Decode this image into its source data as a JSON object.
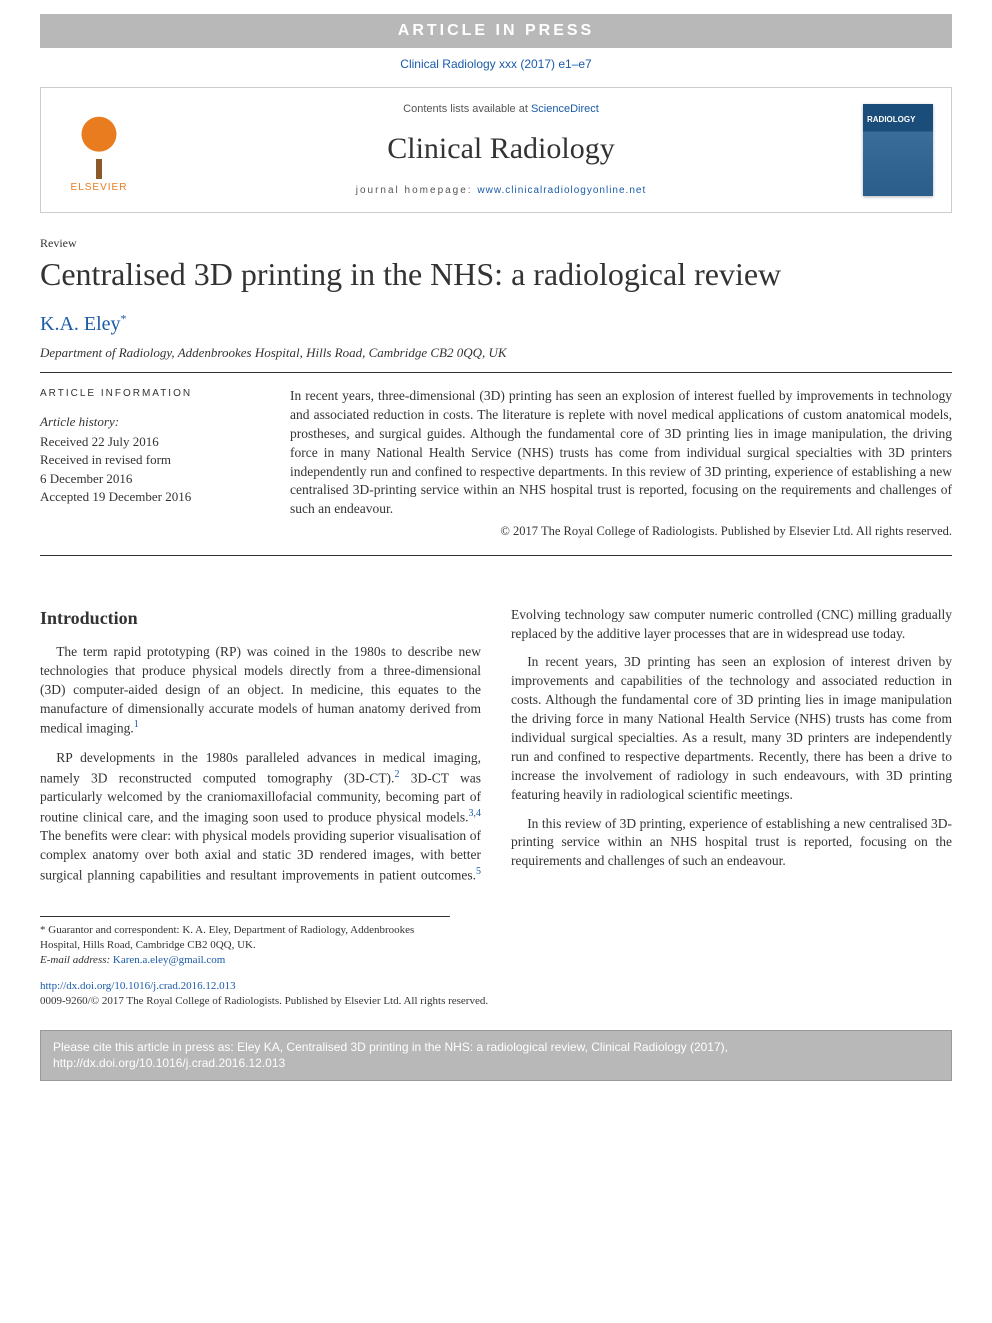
{
  "press_banner": "ARTICLE IN PRESS",
  "journal_ref": "Clinical Radiology xxx (2017) e1–e7",
  "masthead": {
    "elsevier": "ELSEVIER",
    "contents_prefix": "Contents lists available at ",
    "contents_link": "ScienceDirect",
    "journal_title": "Clinical Radiology",
    "homepage_prefix": "journal homepage: ",
    "homepage_url": "www.clinicalradiologyonline.net",
    "cover_label": "RADIOLOGY"
  },
  "article": {
    "type": "Review",
    "title": "Centralised 3D printing in the NHS: a radiological review",
    "authors": "K.A. Eley",
    "author_marker": "*",
    "affiliation": "Department of Radiology, Addenbrookes Hospital, Hills Road, Cambridge CB2 0QQ, UK"
  },
  "info": {
    "heading": "ARTICLE INFORMATION",
    "history_label": "Article history:",
    "received": "Received 22 July 2016",
    "revised_label": "Received in revised form",
    "revised_date": "6 December 2016",
    "accepted": "Accepted 19 December 2016"
  },
  "abstract": {
    "text": "In recent years, three-dimensional (3D) printing has seen an explosion of interest fuelled by improvements in technology and associated reduction in costs. The literature is replete with novel medical applications of custom anatomical models, prostheses, and surgical guides. Although the fundamental core of 3D printing lies in image manipulation, the driving force in many National Health Service (NHS) trusts has come from individual surgical specialties with 3D printers independently run and confined to respective departments. In this review of 3D printing, experience of establishing a new centralised 3D-printing service within an NHS hospital trust is reported, focusing on the requirements and challenges of such an endeavour.",
    "copyright": "© 2017 The Royal College of Radiologists. Published by Elsevier Ltd. All rights reserved."
  },
  "body": {
    "intro_heading": "Introduction",
    "p1": "The term rapid prototyping (RP) was coined in the 1980s to describe new technologies that produce physical models directly from a three-dimensional (3D) computer-aided design of an object. In medicine, this equates to the manufacture of dimensionally accurate models of human anatomy derived from medical imaging.",
    "p1_ref": "1",
    "p2a": "RP developments in the 1980s paralleled advances in medical imaging, namely 3D reconstructed computed tomography (3D-CT).",
    "p2_ref1": "2",
    "p2b": " 3D-CT was particularly welcomed by the craniomaxillofacial community, becoming part of routine clinical care, and the imaging soon used to produce physical models.",
    "p2_ref2": "3,4",
    "p2c": " The benefits were clear: with physical models providing superior visualisation of complex anatomy over both axial and static 3D rendered images, with better surgical planning capabilities and resultant improvements in patient outcomes.",
    "p2_ref3": "5",
    "p2d": " Evolving technology saw computer numeric controlled (CNC) milling gradually replaced by the additive layer processes that are in widespread use today.",
    "p3": "In recent years, 3D printing has seen an explosion of interest driven by improvements and capabilities of the technology and associated reduction in costs. Although the fundamental core of 3D printing lies in image manipulation the driving force in many National Health Service (NHS) trusts has come from individual surgical specialties. As a result, many 3D printers are independently run and confined to respective departments. Recently, there has been a drive to increase the involvement of radiology in such endeavours, with 3D printing featuring heavily in radiological scientific meetings.",
    "p4": "In this review of 3D printing, experience of establishing a new centralised 3D-printing service within an NHS hospital trust is reported, focusing on the requirements and challenges of such an endeavour."
  },
  "footnote": {
    "guarantor": "* Guarantor and correspondent: K. A. Eley, Department of Radiology, Addenbrookes Hospital, Hills Road, Cambridge CB2 0QQ, UK.",
    "email_label": "E-mail address:",
    "email": "Karen.a.eley@gmail.com"
  },
  "doi": {
    "url": "http://dx.doi.org/10.1016/j.crad.2016.12.013",
    "issn_line": "0009-9260/© 2017 The Royal College of Radiologists. Published by Elsevier Ltd. All rights reserved."
  },
  "cite_box": "Please cite this article in press as: Eley KA, Centralised 3D printing in the NHS: a radiological review, Clinical Radiology (2017), http://dx.doi.org/10.1016/j.crad.2016.12.013"
}
